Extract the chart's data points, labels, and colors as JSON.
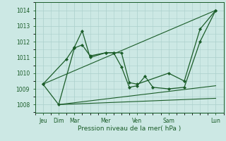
{
  "bg_color": "#cce8e4",
  "grid_color": "#aacfcb",
  "line_color": "#1a5c28",
  "xlabel": "Pression niveau de la mer( hPa )",
  "ylim": [
    1007.5,
    1014.5
  ],
  "yticks": [
    1008,
    1009,
    1010,
    1011,
    1012,
    1013,
    1014
  ],
  "xtick_labels_pos": [
    0,
    1,
    2,
    4,
    6,
    8,
    11
  ],
  "xtick_labels": [
    "Jeu",
    "Dim",
    "Mar",
    "Mer",
    "Ven",
    "Sam",
    "Lun"
  ],
  "xlim": [
    -0.5,
    11.5
  ],
  "series_diagonal": {
    "x": [
      0,
      11
    ],
    "y": [
      1009.3,
      1014.0
    ]
  },
  "series_flat_low1": {
    "x": [
      1,
      11
    ],
    "y": [
      1008.0,
      1009.2
    ]
  },
  "series_flat_low2": {
    "x": [
      1,
      11
    ],
    "y": [
      1008.0,
      1008.4
    ]
  },
  "series_jagged1": {
    "x": [
      0,
      1,
      2,
      2.5,
      3,
      4,
      4.5,
      5,
      5.5,
      6,
      6.5,
      7,
      8,
      9,
      10,
      11
    ],
    "y": [
      1009.3,
      1008.0,
      1011.6,
      1011.8,
      1011.1,
      1011.3,
      1011.3,
      1010.4,
      1009.1,
      1009.2,
      1009.8,
      1009.1,
      1009.0,
      1009.1,
      1012.0,
      1014.0
    ]
  },
  "series_jagged2": {
    "x": [
      0,
      1.5,
      2,
      2.5,
      3,
      4,
      4.5,
      5,
      5.5,
      6,
      8,
      9,
      10,
      11
    ],
    "y": [
      1009.3,
      1010.9,
      1011.65,
      1012.7,
      1011.0,
      1011.3,
      1011.3,
      1011.3,
      1009.4,
      1009.3,
      1010.0,
      1009.5,
      1012.8,
      1014.0
    ]
  }
}
